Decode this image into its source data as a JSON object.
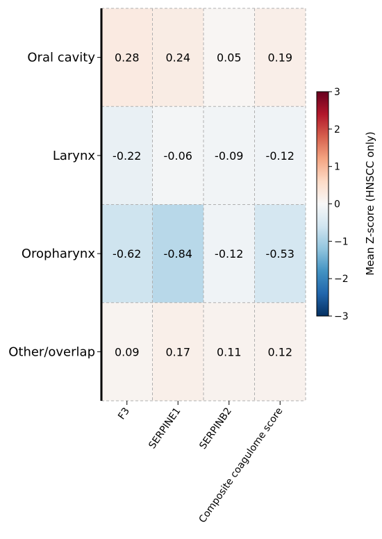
{
  "chart_data": {
    "type": "heatmap",
    "title": "",
    "xlabel": "",
    "ylabel": "",
    "rows": [
      "Oral cavity",
      "Larynx",
      "Oropharynx",
      "Other/overlap"
    ],
    "columns": [
      "F3",
      "SERPINE1",
      "SERPINB2",
      "Composite coagulome score"
    ],
    "values": [
      [
        0.28,
        0.24,
        0.05,
        0.19
      ],
      [
        -0.22,
        -0.06,
        -0.09,
        -0.12
      ],
      [
        -0.62,
        -0.84,
        -0.12,
        -0.53
      ],
      [
        0.09,
        0.17,
        0.11,
        0.12
      ]
    ],
    "cell_labels": [
      [
        "0.28",
        "0.24",
        "0.05",
        "0.19"
      ],
      [
        "-0.22",
        "-0.06",
        "-0.09",
        "-0.12"
      ],
      [
        "-0.62",
        "-0.84",
        "-0.12",
        "-0.53"
      ],
      [
        "0.09",
        "0.17",
        "0.11",
        "0.12"
      ]
    ],
    "colorbar": {
      "label": "Mean Z-score (HNSCC only)",
      "range": [
        -3,
        3
      ],
      "ticks": [
        "3",
        "2",
        "1",
        "0",
        "−1",
        "−2",
        "−3"
      ],
      "tick_values": [
        3,
        2,
        1,
        0,
        -1,
        -2,
        -3
      ],
      "colormap": "RdBu_r",
      "stops": [
        "#053061",
        "#2166ac",
        "#4393c3",
        "#92c5de",
        "#d1e5f0",
        "#f7f7f7",
        "#fddbc7",
        "#f4a582",
        "#d6604d",
        "#b2182b",
        "#67001f"
      ]
    },
    "grid": true,
    "grid_style": "dashed"
  }
}
